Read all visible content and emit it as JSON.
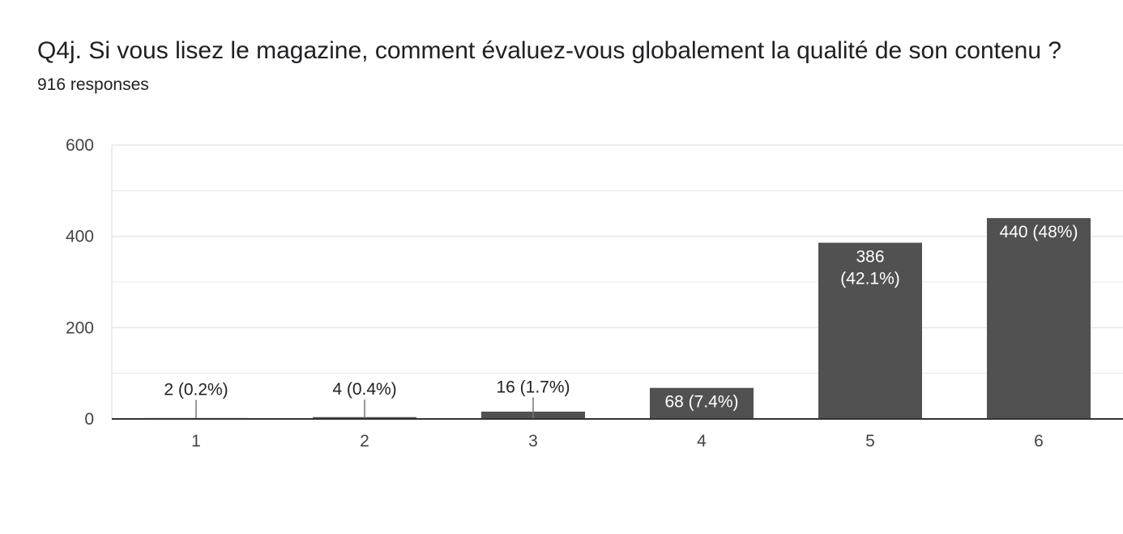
{
  "header": {
    "title": "Q4j. Si vous lisez le magazine, comment évaluez-vous globalement la qualité de son contenu ?",
    "subtitle": "916 responses"
  },
  "colors": {
    "bar": "#515151",
    "grid": "#e8e8e8",
    "axis": "#333333"
  },
  "chart_data": {
    "type": "bar",
    "categories": [
      "1",
      "2",
      "3",
      "4",
      "5",
      "6"
    ],
    "values": [
      2,
      4,
      16,
      68,
      386,
      440
    ],
    "data_labels": [
      [
        "2 (0.2%)"
      ],
      [
        "4 (0.4%)"
      ],
      [
        "16 (1.7%)"
      ],
      [
        "68 (7.4%)"
      ],
      [
        "386",
        "(42.1%)"
      ],
      [
        "440 (48%)"
      ]
    ],
    "y_ticks": [
      "0",
      "200",
      "400",
      "600"
    ],
    "ylim": [
      0,
      600
    ],
    "grid": true,
    "legend": "none"
  }
}
